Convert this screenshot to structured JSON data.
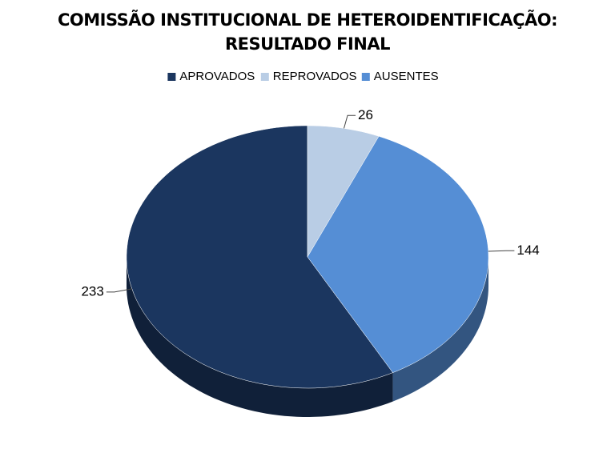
{
  "chart_data": {
    "type": "pie3d",
    "title": [
      "COMISSÃO INSTITUCIONAL DE HETEROIDENTIFICAÇÃO:",
      "RESULTADO FINAL"
    ],
    "categories": [
      "APROVADOS",
      "REPROVADOS",
      "AUSENTES"
    ],
    "values": [
      233,
      26,
      144
    ],
    "colors": [
      "#1b365f",
      "#b9cde5",
      "#558ed5"
    ],
    "legend": "top"
  }
}
